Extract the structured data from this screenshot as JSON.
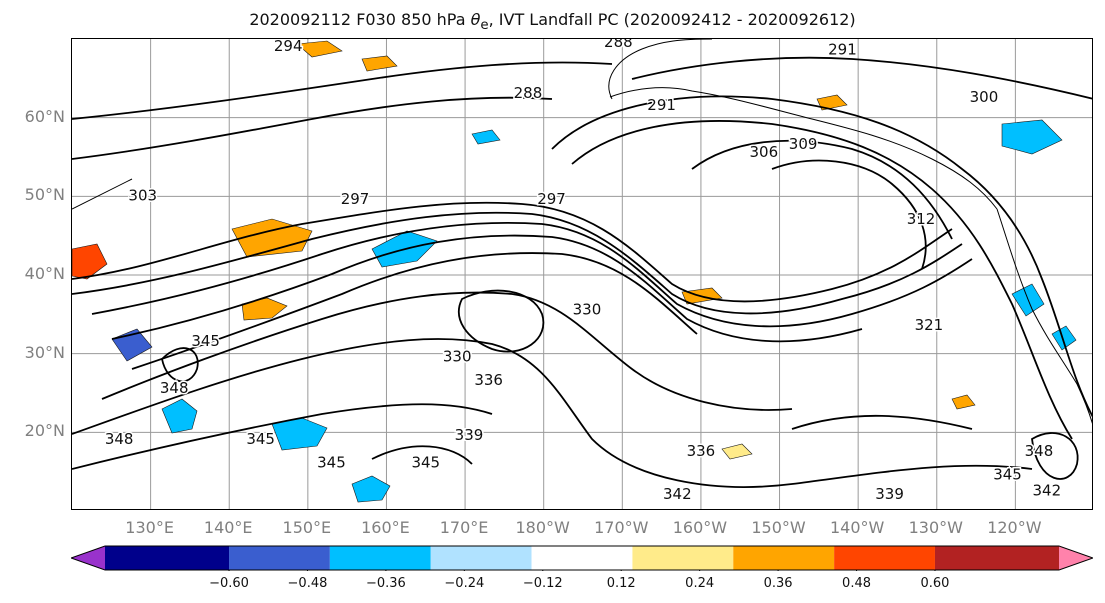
{
  "title_prefix": "2020092112 F030 850 hPa ",
  "title_symbol": "θ",
  "title_subscript": "e",
  "title_suffix": ", IVT Landfall PC (2020092412 - 2020092612)",
  "lat_labels": [
    {
      "text": "60°N",
      "lat": 60
    },
    {
      "text": "50°N",
      "lat": 50
    },
    {
      "text": "40°N",
      "lat": 40
    },
    {
      "text": "30°N",
      "lat": 30
    },
    {
      "text": "20°N",
      "lat": 20
    }
  ],
  "lon_labels": [
    {
      "text": "130°E",
      "lon": 130
    },
    {
      "text": "140°E",
      "lon": 140
    },
    {
      "text": "150°E",
      "lon": 150
    },
    {
      "text": "160°E",
      "lon": 160
    },
    {
      "text": "170°E",
      "lon": 170
    },
    {
      "text": "180°W",
      "lon": 180
    },
    {
      "text": "170°W",
      "lon": 190
    },
    {
      "text": "160°W",
      "lon": 200
    },
    {
      "text": "150°W",
      "lon": 210
    },
    {
      "text": "140°W",
      "lon": 220
    },
    {
      "text": "130°W",
      "lon": 230
    },
    {
      "text": "120°W",
      "lon": 240
    }
  ],
  "map_extent": {
    "lon_min": 120,
    "lon_max": 250,
    "lat_min": 10,
    "lat_max": 70
  },
  "colorbar": {
    "ticks": [
      "−0.60",
      "−0.48",
      "−0.36",
      "−0.24",
      "−0.12",
      "0.12",
      "0.24",
      "0.36",
      "0.48",
      "0.60"
    ],
    "colors": [
      "#9932cc",
      "#00008b",
      "#3a5ecf",
      "#00bfff",
      "#b0e2ff",
      "#ffffff",
      "#ffeb8a",
      "#ffa500",
      "#ff4500",
      "#b22222",
      "#ff82ab"
    ],
    "extend": "both"
  },
  "contour_labels": [
    {
      "text": "294",
      "lon": 147.5,
      "lat": 68.5
    },
    {
      "text": "288",
      "lon": 189.5,
      "lat": 69
    },
    {
      "text": "291",
      "lon": 218,
      "lat": 68
    },
    {
      "text": "288",
      "lon": 178,
      "lat": 62.5
    },
    {
      "text": "291",
      "lon": 195,
      "lat": 61
    },
    {
      "text": "300",
      "lon": 236,
      "lat": 62
    },
    {
      "text": "306",
      "lon": 208,
      "lat": 55
    },
    {
      "text": "309",
      "lon": 213,
      "lat": 56
    },
    {
      "text": "297",
      "lon": 156,
      "lat": 49
    },
    {
      "text": "297",
      "lon": 181,
      "lat": 49
    },
    {
      "text": "303",
      "lon": 129,
      "lat": 49.5
    },
    {
      "text": "312",
      "lon": 228,
      "lat": 46.5
    },
    {
      "text": "330",
      "lon": 185.5,
      "lat": 35
    },
    {
      "text": "321",
      "lon": 229,
      "lat": 33
    },
    {
      "text": "345",
      "lon": 137,
      "lat": 31
    },
    {
      "text": "348",
      "lon": 133,
      "lat": 25
    },
    {
      "text": "330",
      "lon": 169,
      "lat": 29
    },
    {
      "text": "336",
      "lon": 173,
      "lat": 26
    },
    {
      "text": "339",
      "lon": 170.5,
      "lat": 19
    },
    {
      "text": "345",
      "lon": 144,
      "lat": 18.5
    },
    {
      "text": "345",
      "lon": 153,
      "lat": 15.5
    },
    {
      "text": "345",
      "lon": 165,
      "lat": 15.5
    },
    {
      "text": "336",
      "lon": 200,
      "lat": 17
    },
    {
      "text": "342",
      "lon": 197,
      "lat": 11.5
    },
    {
      "text": "339",
      "lon": 224,
      "lat": 11.5
    },
    {
      "text": "345",
      "lon": 239,
      "lat": 14
    },
    {
      "text": "348",
      "lon": 243,
      "lat": 17
    },
    {
      "text": "342",
      "lon": 244,
      "lat": 12
    },
    {
      "text": "348",
      "lon": 126,
      "lat": 18.5
    }
  ]
}
